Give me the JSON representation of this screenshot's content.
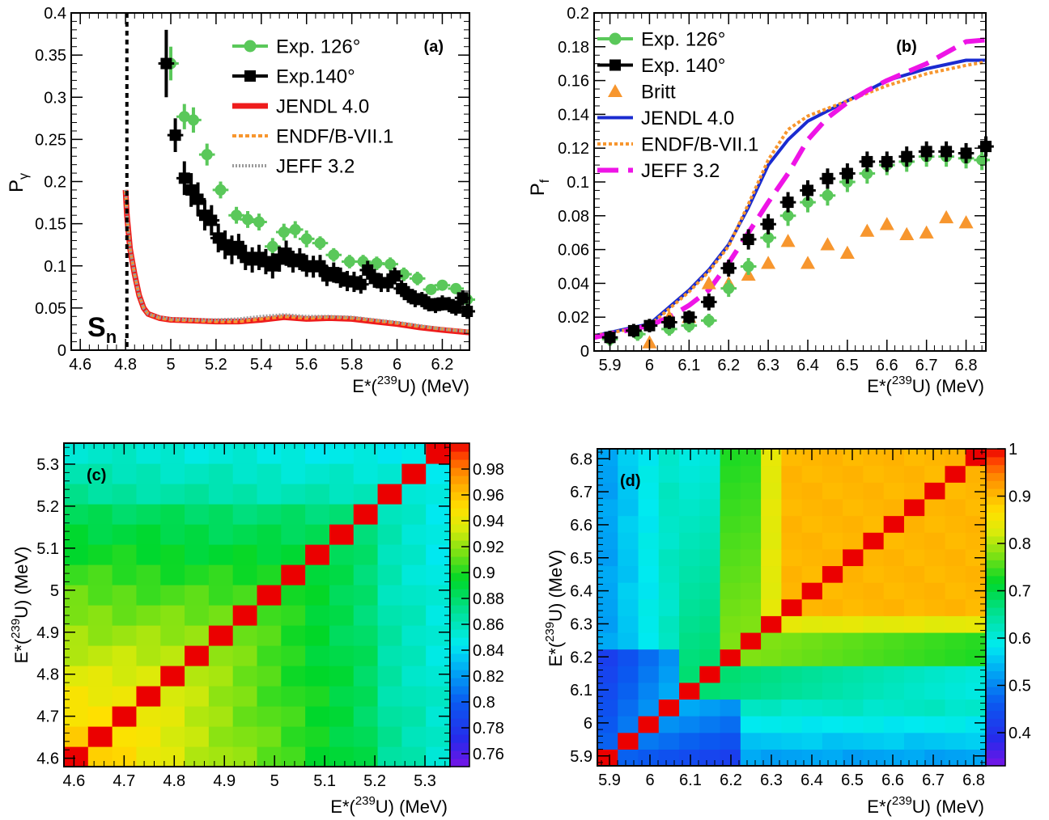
{
  "chart_data": [
    {
      "panel": "(a)",
      "type": "scatter",
      "xlabel": "E*(239U) (MeV)",
      "ylabel": "Pγ",
      "xlim": [
        4.56,
        6.32
      ],
      "ylim": [
        0,
        0.4
      ],
      "xticks": [
        "4.6",
        "4.8",
        "5",
        "5.2",
        "5.4",
        "5.6",
        "5.8",
        "6",
        "6.2"
      ],
      "yticks": [
        "0",
        "0.05",
        "0.1",
        "0.15",
        "0.2",
        "0.25",
        "0.3",
        "0.35",
        "0.4"
      ],
      "annotations": {
        "sn_label": "S",
        "sn_sub": "n",
        "sn_x": 4.806
      },
      "legend_position": "top-right",
      "series": [
        {
          "name": "Exp. 126°",
          "style": "points",
          "color": "#5ac85a",
          "x": [
            5.0,
            5.06,
            5.1,
            5.16,
            5.22,
            5.29,
            5.34,
            5.39,
            5.45,
            5.5,
            5.55,
            5.6,
            5.66,
            5.72,
            5.79,
            5.85,
            5.91,
            5.97,
            6.03,
            6.09,
            6.15,
            6.2,
            6.26,
            6.31
          ],
          "y": [
            0.34,
            0.277,
            0.273,
            0.232,
            0.19,
            0.16,
            0.155,
            0.152,
            0.123,
            0.14,
            0.143,
            0.132,
            0.127,
            0.113,
            0.105,
            0.105,
            0.103,
            0.102,
            0.09,
            0.085,
            0.072,
            0.077,
            0.073,
            0.06
          ],
          "err": [
            0.02,
            0.015,
            0.015,
            0.013,
            0.01,
            0.01,
            0.01,
            0.01,
            0.01,
            0.01,
            0.01,
            0.01,
            0.008,
            0.008,
            0.008,
            0.008,
            0.008,
            0.008,
            0.008,
            0.008,
            0.006,
            0.006,
            0.006,
            0.006
          ]
        },
        {
          "name": "Exp.140°",
          "style": "points",
          "color": "#000000",
          "x": [
            4.98,
            5.02,
            5.06,
            5.09,
            5.12,
            5.15,
            5.18,
            5.21,
            5.24,
            5.27,
            5.3,
            5.33,
            5.36,
            5.39,
            5.42,
            5.45,
            5.48,
            5.51,
            5.54,
            5.57,
            5.6,
            5.63,
            5.66,
            5.69,
            5.72,
            5.75,
            5.78,
            5.81,
            5.84,
            5.87,
            5.9,
            5.93,
            5.96,
            5.99,
            6.02,
            6.05,
            6.08,
            6.11,
            6.14,
            6.17,
            6.2,
            6.23,
            6.26,
            6.29,
            6.31
          ],
          "y": [
            0.34,
            0.255,
            0.204,
            0.19,
            0.179,
            0.16,
            0.154,
            0.133,
            0.125,
            0.119,
            0.123,
            0.11,
            0.107,
            0.11,
            0.105,
            0.1,
            0.108,
            0.115,
            0.105,
            0.108,
            0.1,
            0.099,
            0.1,
            0.088,
            0.092,
            0.086,
            0.082,
            0.081,
            0.078,
            0.095,
            0.085,
            0.08,
            0.08,
            0.088,
            0.073,
            0.066,
            0.061,
            0.06,
            0.055,
            0.053,
            0.056,
            0.054,
            0.05,
            0.062,
            0.046
          ],
          "err": [
            0.04,
            0.02,
            0.02,
            0.02,
            0.02,
            0.018,
            0.018,
            0.017,
            0.017,
            0.017,
            0.015,
            0.015,
            0.015,
            0.015,
            0.015,
            0.015,
            0.015,
            0.015,
            0.013,
            0.013,
            0.013,
            0.013,
            0.013,
            0.012,
            0.012,
            0.012,
            0.012,
            0.012,
            0.011,
            0.011,
            0.011,
            0.011,
            0.011,
            0.01,
            0.01,
            0.01,
            0.01,
            0.009,
            0.009,
            0.009,
            0.009,
            0.009,
            0.009,
            0.009,
            0.009
          ]
        },
        {
          "name": "JENDL 4.0",
          "style": "line",
          "color": "#ee1c1c",
          "dash": "",
          "width": 7,
          "x": [
            4.8,
            4.806,
            4.82,
            4.84,
            4.86,
            4.88,
            4.9,
            4.95,
            5.0,
            5.1,
            5.2,
            5.3,
            5.4,
            5.5,
            5.6,
            5.7,
            5.8,
            5.9,
            6.0,
            6.1,
            6.2,
            6.32
          ],
          "y": [
            0.19,
            0.16,
            0.12,
            0.09,
            0.065,
            0.05,
            0.043,
            0.038,
            0.036,
            0.035,
            0.034,
            0.034,
            0.036,
            0.039,
            0.037,
            0.038,
            0.037,
            0.034,
            0.031,
            0.027,
            0.024,
            0.021
          ]
        },
        {
          "name": "ENDF/B-VII.1",
          "style": "line",
          "color": "#f7962e",
          "dash": "5,3",
          "width": 4,
          "x": [
            4.8,
            4.806,
            4.82,
            4.84,
            4.86,
            4.88,
            4.9,
            4.95,
            5.0,
            5.1,
            5.2,
            5.3,
            5.4,
            5.5,
            5.6,
            5.7,
            5.8,
            5.9,
            6.0,
            6.1,
            6.2,
            6.32
          ],
          "y": [
            0.19,
            0.16,
            0.12,
            0.09,
            0.065,
            0.05,
            0.043,
            0.038,
            0.036,
            0.035,
            0.034,
            0.034,
            0.037,
            0.04,
            0.038,
            0.039,
            0.038,
            0.035,
            0.032,
            0.028,
            0.025,
            0.022
          ]
        },
        {
          "name": "JEFF 3.2",
          "style": "line",
          "color": "#9a9a9a",
          "dash": "2,2",
          "width": 4,
          "x": [
            4.8,
            4.806,
            4.82,
            4.84,
            4.86,
            4.88,
            4.9,
            4.95,
            5.0,
            5.1,
            5.2,
            5.3,
            5.4,
            5.5,
            5.6,
            5.7,
            5.8,
            5.9,
            6.0,
            6.1,
            6.2,
            6.32
          ],
          "y": [
            0.19,
            0.16,
            0.12,
            0.09,
            0.065,
            0.05,
            0.043,
            0.039,
            0.037,
            0.036,
            0.036,
            0.037,
            0.04,
            0.042,
            0.04,
            0.04,
            0.039,
            0.036,
            0.033,
            0.029,
            0.025,
            0.022
          ]
        }
      ]
    },
    {
      "panel": "(b)",
      "type": "scatter",
      "xlabel": "E*(239U) (MeV)",
      "ylabel": "Pf",
      "xlim": [
        5.86,
        6.85
      ],
      "ylim": [
        0,
        0.2
      ],
      "xticks": [
        "5.9",
        "6",
        "6.1",
        "6.2",
        "6.3",
        "6.4",
        "6.5",
        "6.6",
        "6.7",
        "6.8"
      ],
      "yticks": [
        "0",
        "0.02",
        "0.04",
        "0.06",
        "0.08",
        "0.1",
        "0.12",
        "0.14",
        "0.16",
        "0.18",
        "0.2"
      ],
      "legend_position": "top-left",
      "series": [
        {
          "name": "Exp. 126°",
          "style": "points",
          "color": "#5ac85a",
          "x": [
            5.9,
            5.97,
            6.05,
            6.1,
            6.15,
            6.2,
            6.25,
            6.3,
            6.35,
            6.4,
            6.45,
            6.5,
            6.55,
            6.6,
            6.65,
            6.7,
            6.75,
            6.8,
            6.84
          ],
          "y": [
            0.007,
            0.01,
            0.013,
            0.015,
            0.018,
            0.037,
            0.05,
            0.067,
            0.08,
            0.088,
            0.092,
            0.1,
            0.105,
            0.11,
            0.112,
            0.115,
            0.115,
            0.114,
            0.113
          ],
          "err": [
            0.004,
            0.004,
            0.004,
            0.004,
            0.004,
            0.005,
            0.005,
            0.006,
            0.006,
            0.006,
            0.006,
            0.006,
            0.006,
            0.006,
            0.006,
            0.006,
            0.006,
            0.006,
            0.006
          ]
        },
        {
          "name": "Exp. 140°",
          "style": "points",
          "color": "#000000",
          "x": [
            5.9,
            5.96,
            6.0,
            6.05,
            6.1,
            6.15,
            6.2,
            6.25,
            6.3,
            6.35,
            6.4,
            6.45,
            6.5,
            6.55,
            6.6,
            6.65,
            6.7,
            6.75,
            6.8,
            6.85
          ],
          "y": [
            0.008,
            0.012,
            0.015,
            0.017,
            0.02,
            0.029,
            0.049,
            0.066,
            0.075,
            0.088,
            0.095,
            0.102,
            0.105,
            0.112,
            0.112,
            0.115,
            0.118,
            0.118,
            0.117,
            0.121
          ],
          "err": [
            0.004,
            0.004,
            0.004,
            0.004,
            0.004,
            0.005,
            0.005,
            0.006,
            0.006,
            0.006,
            0.006,
            0.006,
            0.006,
            0.006,
            0.006,
            0.006,
            0.006,
            0.006,
            0.006,
            0.006
          ]
        },
        {
          "name": "Britt",
          "style": "triangles",
          "color": "#f7962e",
          "x": [
            6.0,
            6.05,
            6.1,
            6.15,
            6.2,
            6.25,
            6.3,
            6.35,
            6.4,
            6.45,
            6.5,
            6.55,
            6.6,
            6.65,
            6.7,
            6.75,
            6.8
          ],
          "y": [
            0.005,
            0.02,
            0.02,
            0.04,
            0.04,
            0.045,
            0.052,
            0.065,
            0.052,
            0.063,
            0.058,
            0.071,
            0.075,
            0.069,
            0.07,
            0.079,
            0.076
          ]
        },
        {
          "name": "JENDL 4.0",
          "style": "line",
          "color": "#1a2bd0",
          "dash": "",
          "width": 4,
          "x": [
            5.86,
            6.0,
            6.05,
            6.1,
            6.15,
            6.2,
            6.25,
            6.3,
            6.35,
            6.4,
            6.5,
            6.6,
            6.7,
            6.8,
            6.85
          ],
          "y": [
            0.009,
            0.016,
            0.026,
            0.036,
            0.048,
            0.063,
            0.085,
            0.11,
            0.125,
            0.136,
            0.148,
            0.16,
            0.167,
            0.172,
            0.172
          ]
        },
        {
          "name": "ENDF/B-VII.1",
          "style": "line",
          "color": "#f7962e",
          "dash": "4,3",
          "width": 4,
          "x": [
            5.86,
            6.0,
            6.05,
            6.1,
            6.15,
            6.2,
            6.25,
            6.3,
            6.35,
            6.4,
            6.5,
            6.6,
            6.7,
            6.8,
            6.85
          ],
          "y": [
            0.009,
            0.015,
            0.025,
            0.035,
            0.047,
            0.062,
            0.087,
            0.113,
            0.131,
            0.139,
            0.148,
            0.157,
            0.164,
            0.169,
            0.171
          ]
        },
        {
          "name": "JEFF 3.2",
          "style": "line",
          "color": "#ee14e6",
          "dash": "26,12",
          "width": 6,
          "x": [
            5.86,
            6.0,
            6.05,
            6.1,
            6.15,
            6.2,
            6.25,
            6.3,
            6.35,
            6.4,
            6.45,
            6.5,
            6.55,
            6.6,
            6.7,
            6.8,
            6.85
          ],
          "y": [
            0.008,
            0.015,
            0.02,
            0.027,
            0.036,
            0.052,
            0.07,
            0.088,
            0.105,
            0.125,
            0.138,
            0.147,
            0.154,
            0.16,
            0.17,
            0.183,
            0.184
          ]
        }
      ]
    },
    {
      "panel": "(c)",
      "type": "heatmap",
      "xlabel": "E*(239U) (MeV)",
      "ylabel": "E*(239U) (MeV)",
      "xlim": [
        4.58,
        5.35
      ],
      "ylim": [
        4.58,
        5.35
      ],
      "n": 16,
      "xticks": [
        "4.6",
        "4.7",
        "4.8",
        "4.9",
        "5",
        "5.1",
        "5.2",
        "5.3"
      ],
      "yticks": [
        "4.6",
        "4.7",
        "4.8",
        "4.9",
        "5",
        "5.1",
        "5.2",
        "5.3"
      ],
      "zlim": [
        0.75,
        1.0
      ],
      "palette_ticks": [
        "0.76",
        "0.78",
        "0.8",
        "0.82",
        "0.84",
        "0.86",
        "0.88",
        "0.9",
        "0.92",
        "0.94",
        "0.96",
        "0.98"
      ]
    },
    {
      "panel": "(d)",
      "type": "heatmap",
      "xlabel": "E*(239U) (MeV)",
      "ylabel": "E*(239U) (MeV)",
      "xlim": [
        5.87,
        6.83
      ],
      "ylim": [
        5.87,
        6.83
      ],
      "n": 19,
      "xticks": [
        "5.9",
        "6",
        "6.1",
        "6.2",
        "6.3",
        "6.4",
        "6.5",
        "6.6",
        "6.7",
        "6.8"
      ],
      "yticks": [
        "5.9",
        "6",
        "6.1",
        "6.2",
        "6.3",
        "6.4",
        "6.5",
        "6.6",
        "6.7",
        "6.8"
      ],
      "zlim": [
        0.33,
        1.0
      ],
      "palette_ticks": [
        "0.4",
        "0.5",
        "0.6",
        "0.7",
        "0.8",
        "0.9",
        "1"
      ]
    }
  ]
}
